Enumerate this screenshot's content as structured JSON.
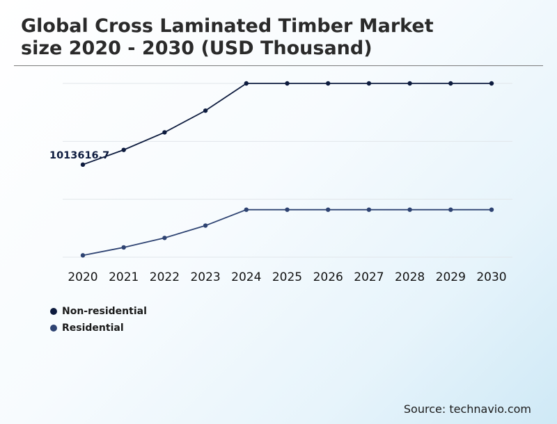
{
  "title": {
    "line1": "Global Cross Laminated Timber Market",
    "line2": "size 2020 - 2030 (USD Thousand)"
  },
  "source": "Source: technavio.com",
  "chart_data": {
    "type": "line",
    "x": [
      "2020",
      "2021",
      "2022",
      "2023",
      "2024",
      "2025",
      "2026",
      "2027",
      "2028",
      "2029",
      "2030"
    ],
    "series": [
      {
        "name": "Non-residential",
        "color": "#0d1b3e",
        "values": [
          1013616.7,
          1175000,
          1367000,
          1605000,
          1903000,
          1903000,
          1903000,
          1903000,
          1903000,
          1903000,
          1903000
        ]
      },
      {
        "name": "Residential",
        "color": "#2e4372",
        "values": [
          20000,
          107000,
          211000,
          346000,
          520000,
          520000,
          520000,
          520000,
          520000,
          520000,
          520000
        ]
      }
    ],
    "annotations": [
      {
        "series": 0,
        "index": 0,
        "text": "1013616.7"
      }
    ],
    "grid": true,
    "legend_position": "bottom-left"
  }
}
